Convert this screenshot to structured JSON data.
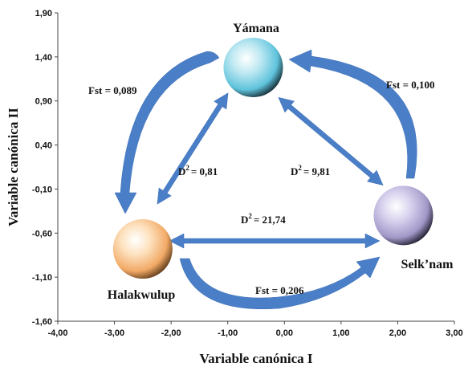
{
  "chart_data": {
    "type": "scatter",
    "xlabel": "Variable canónica I",
    "ylabel": "Variable canónica II",
    "xlim": [
      -4.0,
      3.0
    ],
    "ylim": [
      -1.6,
      1.9
    ],
    "x_ticks": [
      "-4,00",
      "-3,00",
      "-2,00",
      "-1,00",
      "0,00",
      "1,00",
      "2,00",
      "3,00"
    ],
    "y_ticks": [
      "1,90",
      "1,40",
      "0,90",
      "0,40",
      "-0,10",
      "-0,60",
      "-1,10",
      "-1,60"
    ],
    "points": [
      {
        "label": "Yámana",
        "x": -0.55,
        "y": 1.28,
        "color": "#5fc3dc"
      },
      {
        "label": "Halakwulup",
        "x": -2.5,
        "y": -0.78,
        "color": "#f2a966"
      },
      {
        "label": "Selk’nam",
        "x": 2.1,
        "y": -0.4,
        "color": "#a298c8"
      }
    ],
    "distance_labels": [
      {
        "text": "D",
        "sup": "2",
        "value": "= 0,81",
        "between": [
          "Yámana",
          "Halakwulup"
        ]
      },
      {
        "text": "D",
        "sup": "2",
        "value": "= 9,81",
        "between": [
          "Yámana",
          "Selk’nam"
        ]
      },
      {
        "text": "D",
        "sup": "2",
        "value": "= 21,74",
        "between": [
          "Halakwulup",
          "Selk’nam"
        ]
      }
    ],
    "fst_labels": [
      {
        "text": "Fst = 0,089",
        "between": [
          "Yámana",
          "Halakwulup"
        ]
      },
      {
        "text": "Fst = 0,100",
        "between": [
          "Yámana",
          "Selk’nam"
        ]
      },
      {
        "text": "Fst = 0,206",
        "between": [
          "Halakwulup",
          "Selk’nam"
        ]
      }
    ],
    "arrow_color": "#4a7fc8"
  }
}
